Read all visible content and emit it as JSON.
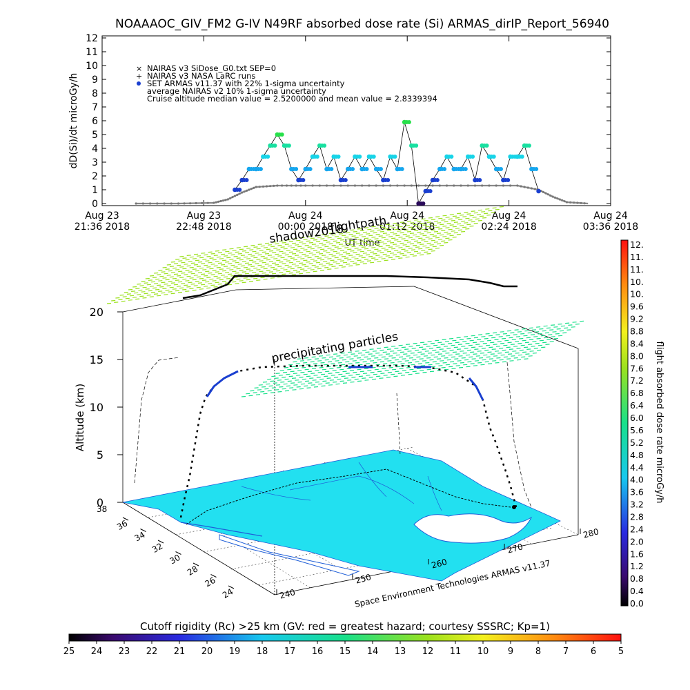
{
  "header": {
    "title": "NOAAAOC_GIV_FM2 G-IV   N49RF  absorbed dose rate (Si) ARMAS_dirIP_Report_56940"
  },
  "top_plot": {
    "ylabel": "dD(Si)/dt microGy/h",
    "legend": [
      {
        "text": "NAIRAS v3 SiDose_G0.txt SEP=0",
        "marker": "x",
        "color": "#888888"
      },
      {
        "text": "NAIRAS v3 NASA LaRC runs",
        "marker": "+",
        "color": "#000000"
      },
      {
        "text": "SET ARMAS v11.37 with 22% 1-sigma uncertainty",
        "marker": "dot",
        "color": "#1a3fd0"
      },
      {
        "text": "average NAIRAS v2 10% 1-sigma uncertainty",
        "marker": "none",
        "color": "#000000"
      },
      {
        "text": "Cruise altitude median value = 2.5200000 and mean value = 2.8339394",
        "marker": "none",
        "color": "#000000"
      }
    ],
    "x_ticks": [
      {
        "l1": "Aug 23",
        "l2": "21:36 2018"
      },
      {
        "l1": "Aug 23",
        "l2": "22:48 2018"
      },
      {
        "l1": "Aug 24",
        "l2": "00:00 2018"
      },
      {
        "l1": "Aug 24",
        "l2": "01:12 2018"
      },
      {
        "l1": "Aug 24",
        "l2": "02:24 2018"
      },
      {
        "l1": "Aug 24",
        "l2": "03:36 2018"
      }
    ],
    "xlabel": "UT time"
  },
  "chart_data": {
    "type": "scatter",
    "title": "NOAAAOC_GIV_FM2 G-IV   N49RF  absorbed dose rate (Si) ARMAS_dirIP_Report_56940",
    "xlabel": "UT time",
    "ylabel": "dD(Si)/dt microGy/h",
    "ylim": [
      0,
      12
    ],
    "xlim": [
      "2018-08-23 21:36",
      "2018-08-24 03:36"
    ],
    "yticks": [
      0,
      1,
      2,
      3,
      4,
      5,
      6,
      7,
      8,
      9,
      10,
      11,
      12
    ],
    "series": [
      {
        "name": "NAIRAS v3 SiDose_G0.txt SEP=0",
        "x": [
          "2018-08-23 22:00",
          "2018-08-23 22:30",
          "2018-08-23 22:55",
          "2018-08-23 23:05",
          "2018-08-23 23:15",
          "2018-08-23 23:25",
          "2018-08-23 23:40",
          "2018-08-24 00:00",
          "2018-08-24 00:30",
          "2018-08-24 01:00",
          "2018-08-24 01:30",
          "2018-08-24 02:00",
          "2018-08-24 02:30",
          "2018-08-24 02:45",
          "2018-08-24 02:55",
          "2018-08-24 03:05",
          "2018-08-24 03:20"
        ],
        "y": [
          0,
          0,
          0.05,
          0.3,
          0.8,
          1.2,
          1.3,
          1.3,
          1.3,
          1.3,
          1.3,
          1.3,
          1.3,
          1.0,
          0.5,
          0.1,
          0
        ]
      },
      {
        "name": "SET ARMAS v11.37 with 22% 1-sigma uncertainty",
        "x": [
          "2018-08-23 23:10",
          "2018-08-23 23:15",
          "2018-08-23 23:20",
          "2018-08-23 23:25",
          "2018-08-23 23:30",
          "2018-08-23 23:35",
          "2018-08-23 23:40",
          "2018-08-23 23:45",
          "2018-08-23 23:50",
          "2018-08-23 23:55",
          "2018-08-24 00:00",
          "2018-08-24 00:05",
          "2018-08-24 00:10",
          "2018-08-24 00:15",
          "2018-08-24 00:20",
          "2018-08-24 00:25",
          "2018-08-24 00:30",
          "2018-08-24 00:35",
          "2018-08-24 00:40",
          "2018-08-24 00:45",
          "2018-08-24 00:50",
          "2018-08-24 00:55",
          "2018-08-24 01:00",
          "2018-08-24 01:05",
          "2018-08-24 01:10",
          "2018-08-24 01:15",
          "2018-08-24 01:20",
          "2018-08-24 01:25",
          "2018-08-24 01:30",
          "2018-08-24 01:35",
          "2018-08-24 01:40",
          "2018-08-24 01:45",
          "2018-08-24 01:50",
          "2018-08-24 01:55",
          "2018-08-24 02:00",
          "2018-08-24 02:05",
          "2018-08-24 02:10",
          "2018-08-24 02:15",
          "2018-08-24 02:20",
          "2018-08-24 02:25",
          "2018-08-24 02:30",
          "2018-08-24 02:35",
          "2018-08-24 02:40",
          "2018-08-24 02:45"
        ],
        "y": [
          1.0,
          1.7,
          2.5,
          2.5,
          3.4,
          4.2,
          5.0,
          4.2,
          2.5,
          1.7,
          2.5,
          3.4,
          4.2,
          2.5,
          3.4,
          1.7,
          2.5,
          3.4,
          2.5,
          3.4,
          2.5,
          1.7,
          3.4,
          2.5,
          5.9,
          4.2,
          0.0,
          0.9,
          1.7,
          2.5,
          3.4,
          2.5,
          2.5,
          3.4,
          1.7,
          4.2,
          3.4,
          2.5,
          1.7,
          3.4,
          3.4,
          4.2,
          2.5,
          0.9
        ]
      }
    ]
  },
  "map_plot": {
    "labels": {
      "shadow": "shadow2018",
      "flightpath": "flightpath",
      "precip": "precipitating particles",
      "credit": "Space Environment Technologies ARMAS v11.37"
    },
    "z_axis_label": "Altitude (km)",
    "z_ticks": [
      "0",
      "5",
      "10",
      "15",
      "20"
    ],
    "lat_ticks": [
      "36",
      "34",
      "32",
      "30",
      "28",
      "26",
      "24"
    ],
    "lat_ticks_top": "38",
    "lon_ticks": [
      "240",
      "250",
      "260",
      "270",
      "280"
    ]
  },
  "colorbar_v": {
    "label": "flight absorbed dose rate microGy/h",
    "ticks": [
      "12.",
      "11.",
      "11.",
      "10.",
      "10.",
      "9.6",
      "9.2",
      "8.8",
      "8.4",
      "8.0",
      "7.6",
      "7.2",
      "6.8",
      "6.4",
      "6.0",
      "5.6",
      "5.2",
      "4.8",
      "4.4",
      "4.0",
      "3.6",
      "3.2",
      "2.8",
      "2.4",
      "2.0",
      "1.6",
      "1.2",
      "0.8",
      "0.4",
      "0.0"
    ]
  },
  "colorbar_h": {
    "title": "Cutoff rigidity (Rc) >25 km (GV: red = greatest hazard; courtesy SSSRC; Kp=1)",
    "ticks": [
      "25",
      "24",
      "23",
      "22",
      "21",
      "20",
      "19",
      "18",
      "17",
      "16",
      "15",
      "14",
      "13",
      "12",
      "11",
      "10",
      "9",
      "8",
      "7",
      "6",
      "5"
    ]
  },
  "colors": {
    "armas": "#1a3fd0",
    "nairas": "#888888",
    "map_fill": "#22e0f0",
    "map_outline": "#1f5fd8"
  }
}
